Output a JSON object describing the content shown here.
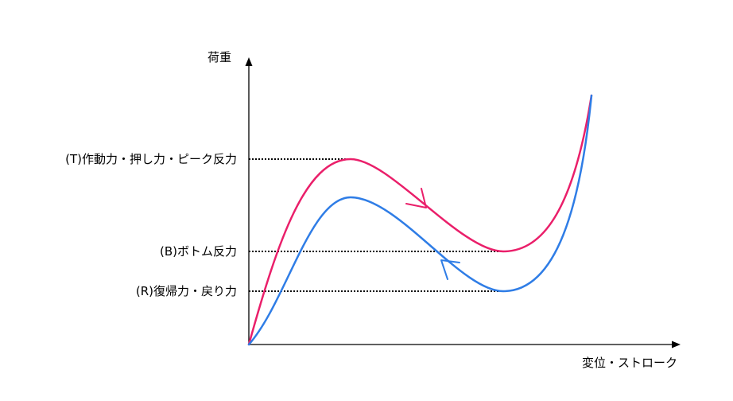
{
  "axes": {
    "y_label": "荷重",
    "x_label": "変位・ストローク"
  },
  "levels": {
    "T": "(T)作動力・押し力・ピーク反力",
    "B": "(B)ボトム反力",
    "R": "(R)復帰力・戻り力"
  },
  "colors": {
    "press_curve": "#ea1f6a",
    "return_curve": "#2f7de6",
    "axis": "#000000"
  }
}
